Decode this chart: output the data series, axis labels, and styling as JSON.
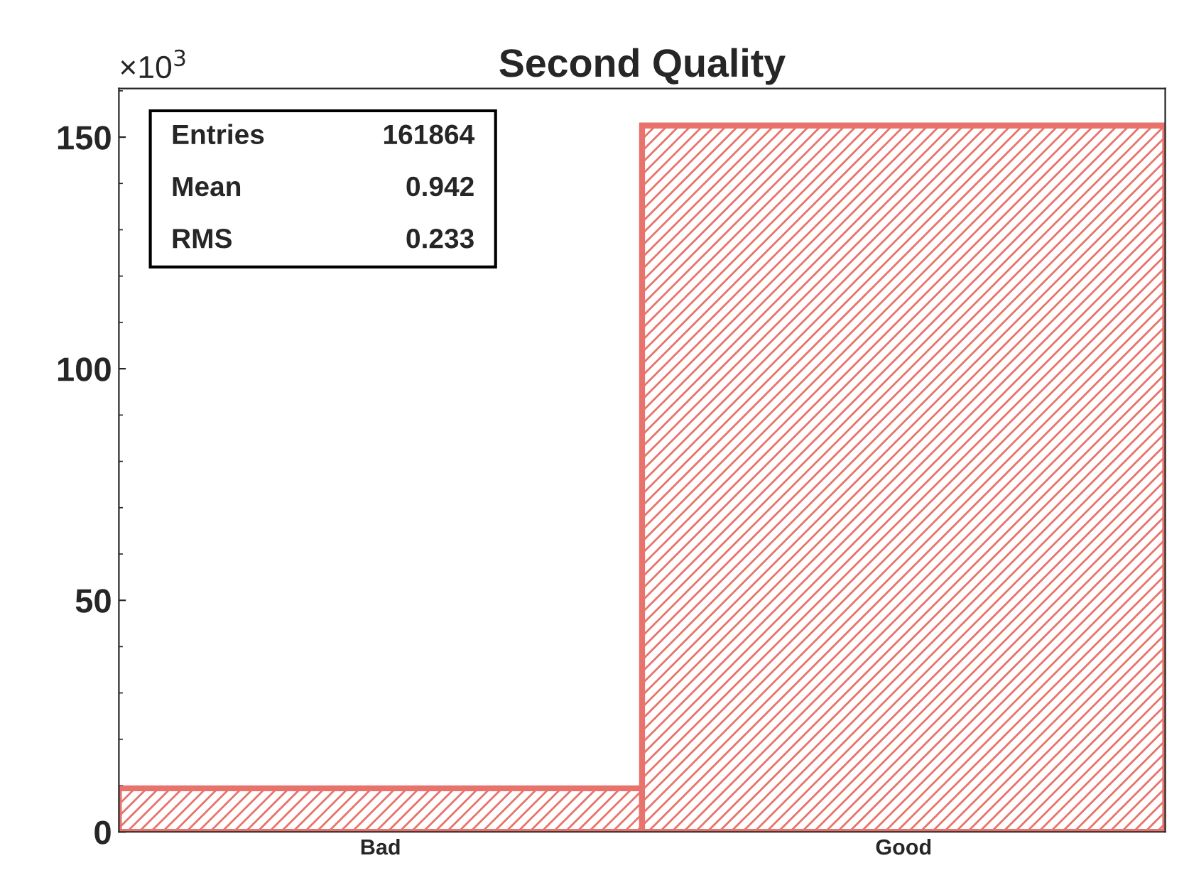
{
  "chart_data": {
    "type": "bar",
    "title": "Second Quality",
    "categories": [
      "Bad",
      "Good"
    ],
    "values": [
      9.4,
      152.5
    ],
    "color": "#e8736c",
    "ylim": [
      0,
      160.5
    ],
    "yticks": [
      0,
      50,
      100,
      150
    ],
    "annotations": [
      "×10$^{3}$",
      "Entries",
      "161864",
      "Mean",
      "0.942",
      "RMS",
      "0.233"
    ],
    "grid": false,
    "legend": false
  }
}
